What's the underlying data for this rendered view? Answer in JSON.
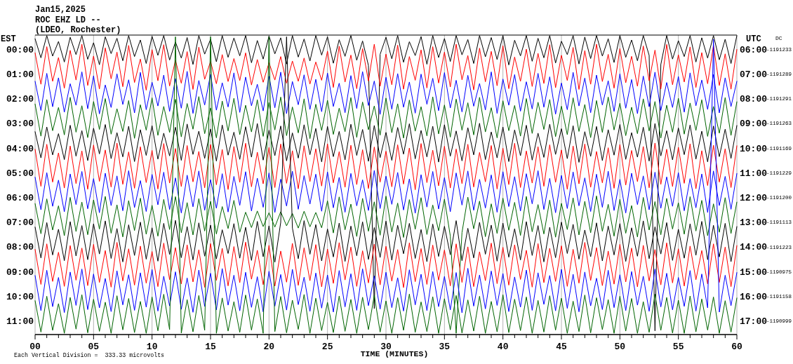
{
  "chart_data": {
    "type": "line",
    "title": "Jan15,2025",
    "subtitle": "ROC EHZ LD --",
    "annotations": [
      "(LDEO, Rochester)",
      "Each Vertical Division =  333.33 microvolts",
      "DC",
      "-1191233",
      "-1191289",
      "-1191291",
      "-1191263",
      "-1191169",
      "-1191229",
      "-1191200",
      "-1191113",
      "-1191223",
      "-1190975",
      "-1191158",
      "-1190999"
    ],
    "xlabel": "TIME (MINUTES)",
    "ylabel": "EST",
    "y2label": "UTC",
    "xlim": [
      0,
      60
    ],
    "xticks": [
      {
        "value": 0,
        "label": "00"
      },
      {
        "value": 1,
        "label": null
      },
      {
        "value": 2,
        "label": null
      },
      {
        "value": 3,
        "label": null
      },
      {
        "value": 4,
        "label": null
      },
      {
        "value": 5,
        "label": "05"
      },
      {
        "value": 6,
        "label": null
      },
      {
        "value": 7,
        "label": null
      },
      {
        "value": 8,
        "label": null
      },
      {
        "value": 9,
        "label": null
      },
      {
        "value": 10,
        "label": "10"
      },
      {
        "value": 11,
        "label": null
      },
      {
        "value": 12,
        "label": null
      },
      {
        "value": 13,
        "label": null
      },
      {
        "value": 14,
        "label": null
      },
      {
        "value": 15,
        "label": "15"
      },
      {
        "value": 16,
        "label": null
      },
      {
        "value": 17,
        "label": null
      },
      {
        "value": 18,
        "label": null
      },
      {
        "value": 19,
        "label": null
      },
      {
        "value": 20,
        "label": "20"
      },
      {
        "value": 21,
        "label": null
      },
      {
        "value": 22,
        "label": null
      },
      {
        "value": 23,
        "label": null
      },
      {
        "value": 24,
        "label": null
      },
      {
        "value": 25,
        "label": "25"
      },
      {
        "value": 26,
        "label": null
      },
      {
        "value": 27,
        "label": null
      },
      {
        "value": 28,
        "label": null
      },
      {
        "value": 29,
        "label": null
      },
      {
        "value": 30,
        "label": "30"
      },
      {
        "value": 31,
        "label": null
      },
      {
        "value": 32,
        "label": null
      },
      {
        "value": 33,
        "label": null
      },
      {
        "value": 34,
        "label": null
      },
      {
        "value": 35,
        "label": "35"
      },
      {
        "value": 36,
        "label": null
      },
      {
        "value": 37,
        "label": null
      },
      {
        "value": 38,
        "label": null
      },
      {
        "value": 39,
        "label": null
      },
      {
        "value": 40,
        "label": "40"
      },
      {
        "value": 41,
        "label": null
      },
      {
        "value": 42,
        "label": null
      },
      {
        "value": 43,
        "label": null
      },
      {
        "value": 44,
        "label": null
      },
      {
        "value": 45,
        "label": "45"
      },
      {
        "value": 46,
        "label": null
      },
      {
        "value": 47,
        "label": null
      },
      {
        "value": 48,
        "label": null
      },
      {
        "value": 49,
        "label": null
      },
      {
        "value": 50,
        "label": "50"
      },
      {
        "value": 51,
        "label": null
      },
      {
        "value": 52,
        "label": null
      },
      {
        "value": 53,
        "label": null
      },
      {
        "value": 54,
        "label": null
      },
      {
        "value": 55,
        "label": "55"
      },
      {
        "value": 56,
        "label": null
      },
      {
        "value": 57,
        "label": null
      },
      {
        "value": 58,
        "label": null
      },
      {
        "value": 59,
        "label": null
      },
      {
        "value": 60,
        "label": "60"
      }
    ],
    "ylim": [
      11.55,
      -0.57
    ],
    "yticks": [
      {
        "value": 0,
        "label": "00:00"
      },
      {
        "value": 1,
        "label": "01:00"
      },
      {
        "value": 2,
        "label": "02:00"
      },
      {
        "value": 3,
        "label": "03:00"
      },
      {
        "value": 4,
        "label": "04:00"
      },
      {
        "value": 5,
        "label": "05:00"
      },
      {
        "value": 6,
        "label": "06:00"
      },
      {
        "value": 7,
        "label": "07:00"
      },
      {
        "value": 8,
        "label": "08:00"
      },
      {
        "value": 9,
        "label": "09:00"
      },
      {
        "value": 10,
        "label": "10:00"
      },
      {
        "value": 11,
        "label": "11:00"
      }
    ],
    "y2lim": [
      17.55,
      5.43
    ],
    "y2ticks": [
      {
        "value": 6,
        "label": "06:00"
      },
      {
        "value": 7,
        "label": "07:00"
      },
      {
        "value": 8,
        "label": "08:00"
      },
      {
        "value": 9,
        "label": "09:00"
      },
      {
        "value": 10,
        "label": "10:00"
      },
      {
        "value": 11,
        "label": "11:00"
      },
      {
        "value": 12,
        "label": "12:00"
      },
      {
        "value": 13,
        "label": "13:00"
      },
      {
        "value": 14,
        "label": "14:00"
      },
      {
        "value": 15,
        "label": "15:00"
      },
      {
        "value": 16,
        "label": "16:00"
      },
      {
        "value": 17,
        "label": "17:00"
      }
    ],
    "grid": "x",
    "x": [
      0,
      0.5,
      1,
      1.5,
      2,
      2.5,
      3,
      3.5,
      4,
      4.5,
      5,
      5.5,
      6,
      6.5,
      7,
      7.5,
      8,
      8.5,
      9,
      9.5,
      10,
      10.5,
      11,
      11.5,
      12,
      12.5,
      13,
      13.5,
      14,
      14.5,
      15,
      15.5,
      16,
      16.5,
      17,
      17.5,
      18,
      18.5,
      19,
      19.5,
      20,
      20.5,
      21,
      21.5,
      22,
      22.5,
      23,
      23.5,
      24,
      24.5,
      25,
      25.5,
      26,
      26.5,
      27,
      27.5,
      28,
      28.5,
      29,
      29.5,
      30,
      30.5,
      31,
      31.5,
      32,
      32.5,
      33,
      33.5,
      34,
      34.5,
      35,
      35.5,
      36,
      36.5,
      37,
      37.5,
      38,
      38.5,
      39,
      39.5,
      40,
      40.5,
      41,
      41.5,
      42,
      42.5,
      43,
      43.5,
      44,
      44.5,
      45,
      45.5,
      46,
      46.5,
      47,
      47.5,
      48,
      48.5,
      49,
      49.5,
      50,
      50.5,
      51,
      51.5,
      52,
      52.5,
      53,
      53.5,
      54,
      54.5,
      55,
      55.5,
      56,
      56.5,
      57,
      57.5,
      58,
      58.5,
      59,
      59.5,
      60
    ],
    "series": [
      {
        "color": "#000000",
        "values": [
          -0.42,
          0.35,
          -0.55,
          0.28,
          -0.31,
          0.52,
          -0.48,
          0.22,
          -0.55,
          0.41,
          -0.26,
          0.63,
          -0.5,
          0.18,
          -0.44,
          0.47,
          -0.55,
          0.3,
          -0.37,
          0.58,
          -0.52,
          0.25,
          -0.55,
          0.44,
          -0.29,
          0.36,
          -0.47,
          0.62,
          -0.55,
          0.2,
          -0.4,
          0.51,
          -0.55,
          0.33,
          -0.45,
          0.27,
          -0.55,
          0.55,
          -0.35,
          0.4,
          -0.53,
          0.19,
          -0.46,
          0.6,
          -0.55,
          0.32,
          -0.41,
          0.48,
          -0.55,
          0.24,
          -0.5,
          0.57,
          -0.38,
          0.29,
          -0.55,
          0.45,
          -0.33,
          0.66,
          10.5,
          0.21,
          -0.48,
          0.39,
          -0.55,
          0.53,
          -0.3,
          0.26,
          -0.51,
          0.61,
          -0.55,
          0.34,
          -0.43,
          0.5,
          -0.55,
          0.23,
          -0.39,
          0.58,
          -0.55,
          0.31,
          -0.47,
          0.42,
          -0.55,
          0.64,
          -0.36,
          0.27,
          -0.55,
          0.49,
          -0.44,
          0.35,
          -0.55,
          0.56,
          -0.32,
          0.22,
          -0.55,
          0.6,
          -0.49,
          0.38,
          -0.55,
          0.28,
          -0.42,
          0.54,
          -0.55,
          0.33,
          -0.37,
          0.47,
          -0.55,
          0.25,
          11.4,
          0.62,
          -0.55,
          0.4,
          -0.34,
          0.3,
          -0.55,
          0.52,
          -0.46,
          0.36,
          -0.55,
          0.43,
          -0.4,
          0.58,
          -0.55
        ]
      },
      {
        "color": "#ff0000",
        "values": [
          0.15,
          1.42,
          -0.1,
          1.3,
          0.34,
          1.58,
          0.05,
          1.25,
          -0.2,
          1.47,
          0.28,
          1.61,
          -0.05,
          1.2,
          0.12,
          1.52,
          -0.15,
          1.35,
          0.4,
          1.66,
          0.02,
          1.28,
          -0.18,
          1.49,
          0.45,
          1.38,
          0.1,
          1.63,
          -0.08,
          1.22,
          0.5,
          1.4,
          0.22,
          1.31,
          0.38,
          1.27,
          0.15,
          1.45,
          0.42,
          1.34,
          0.55,
          1.25,
          0.3,
          1.38,
          0.48,
          1.3,
          0.36,
          1.41,
          0.52,
          1.26,
          0.08,
          1.55,
          -0.12,
          1.33,
          0.24,
          1.6,
          -0.02,
          1.29,
          -0.2,
          1.5,
          0.2,
          1.44,
          -0.16,
          1.62,
          0.3,
          1.26,
          0.03,
          1.57,
          -0.1,
          1.37,
          0.12,
          1.53,
          -0.2,
          1.24,
          0.26,
          1.65,
          -0.04,
          1.32,
          0.09,
          1.48,
          -0.14,
          1.6,
          0.32,
          1.3,
          0.0,
          1.51,
          0.17,
          1.39,
          -0.18,
          1.56,
          0.25,
          1.27,
          -0.07,
          1.63,
          0.06,
          1.42,
          -0.2,
          1.31,
          0.21,
          1.58,
          -0.02,
          1.36,
          0.29,
          1.5,
          -0.13,
          1.28,
          0.04,
          1.61,
          -0.19,
          1.44,
          0.23,
          1.33,
          -0.09,
          1.55,
          0.14,
          1.4,
          -0.15,
          1.47,
          0.19,
          1.62,
          0.01
        ]
      },
      {
        "color": "#0000ff",
        "values": [
          1.3,
          2.48,
          0.98,
          2.33,
          1.16,
          2.55,
          1.4,
          2.27,
          0.92,
          2.41,
          1.08,
          2.62,
          1.45,
          2.36,
          1.0,
          2.24,
          1.24,
          2.58,
          0.94,
          2.45,
          1.34,
          2.3,
          1.05,
          2.52,
          1.19,
          2.39,
          0.9,
          2.6,
          1.27,
          2.26,
          1.02,
          2.47,
          1.36,
          2.34,
          0.96,
          2.56,
          1.13,
          2.29,
          1.42,
          2.5,
          1.1,
          2.37,
          0.93,
          2.61,
          1.31,
          2.25,
          1.04,
          2.44,
          1.22,
          2.53,
          0.97,
          2.32,
          1.38,
          2.57,
          1.07,
          2.4,
          0.91,
          2.28,
          1.29,
          2.64,
          1.14,
          2.43,
          0.99,
          2.35,
          1.33,
          2.59,
          1.01,
          2.23,
          1.18,
          2.49,
          0.95,
          2.38,
          1.26,
          2.54,
          1.06,
          2.31,
          1.39,
          2.46,
          0.92,
          2.6,
          1.21,
          2.27,
          1.03,
          2.51,
          1.32,
          2.42,
          0.98,
          2.35,
          1.12,
          2.63,
          1.37,
          2.45,
          0.94,
          2.3,
          1.17,
          2.57,
          1.05,
          2.26,
          1.28,
          2.52,
          1.0,
          2.39,
          1.23,
          2.61,
          1.09,
          2.33,
          0.93,
          2.48,
          1.35,
          2.36,
          1.11,
          2.55,
          0.96,
          2.29,
          1.25,
          2.44,
          1.03,
          2.58,
          1.16,
          2.32,
          1.3
        ]
      },
      {
        "color": "#006400",
        "values": [
          2.22,
          3.52,
          2.04,
          3.3,
          2.36,
          3.47,
          1.95,
          3.36,
          2.29,
          3.58,
          2.12,
          3.25,
          2.0,
          3.44,
          2.41,
          3.33,
          2.08,
          3.61,
          2.25,
          3.28,
          1.97,
          3.49,
          2.32,
          3.37,
          2.03,
          3.55,
          2.2,
          3.24,
          1.92,
          3.42,
          2.38,
          3.59,
          2.1,
          3.31,
          1.99,
          3.46,
          2.27,
          3.35,
          2.05,
          3.53,
          2.16,
          3.27,
          1.94,
          3.5,
          2.34,
          3.39,
          2.01,
          3.62,
          2.23,
          3.29,
          2.07,
          3.45,
          2.39,
          3.34,
          1.96,
          3.57,
          2.14,
          3.26,
          2.3,
          3.48,
          1.98,
          3.38,
          2.21,
          3.6,
          2.06,
          3.32,
          2.33,
          3.51,
          1.93,
          3.43,
          2.26,
          3.56,
          2.02,
          3.28,
          2.17,
          3.47,
          1.95,
          3.35,
          2.37,
          3.59,
          2.09,
          3.3,
          2.28,
          3.52,
          2.0,
          3.41,
          2.15,
          3.25,
          2.04,
          3.54,
          2.31,
          3.46,
          1.97,
          3.33,
          2.24,
          3.58,
          2.08,
          3.37,
          1.94,
          3.27,
          2.19,
          3.5,
          2.35,
          3.42,
          2.01,
          3.31,
          2.12,
          3.6,
          2.27,
          3.36,
          1.99,
          3.44,
          2.18,
          3.29,
          2.05,
          3.53,
          2.32,
          3.4,
          1.96,
          3.49,
          2.13
        ]
      },
      {
        "color": "#000000",
        "values": [
          3.34,
          4.4,
          3.15,
          4.28,
          3.42,
          4.47,
          3.08,
          4.33,
          3.3,
          4.51,
          3.2,
          4.24,
          3.05,
          4.43,
          3.38,
          4.36,
          3.12,
          4.55,
          3.26,
          4.3,
          3.1,
          4.45,
          3.4,
          4.32,
          3.16,
          4.5,
          3.03,
          4.26,
          3.32,
          4.42,
          3.23,
          4.53,
          3.07,
          4.29,
          3.36,
          4.46,
          3.14,
          4.37,
          3.01,
          4.49,
          3.28,
          4.31,
          3.11,
          4.52,
          3.39,
          4.41,
          3.06,
          4.27,
          3.21,
          4.56,
          3.13,
          4.35,
          3.33,
          4.48,
          3.04,
          4.3,
          3.25,
          4.54,
          3.09,
          4.39,
          3.37,
          4.5,
          3.17,
          4.25,
          3.02,
          4.44,
          3.29,
          4.36,
          3.12,
          4.57,
          3.06,
          4.33,
          3.31,
          4.52,
          3.18,
          4.28,
          3.0,
          4.47,
          3.35,
          4.4,
          3.15,
          4.55,
          3.27,
          4.31,
          3.08,
          4.49,
          3.4,
          4.38,
          3.04,
          4.26,
          3.22,
          4.43,
          3.1,
          4.58,
          3.34,
          4.34,
          3.13,
          4.51,
          3.26,
          4.29,
          3.05,
          4.46,
          3.38,
          4.37,
          3.16,
          4.53,
          3.01,
          4.32,
          3.3,
          4.48,
          3.19,
          4.27,
          3.07,
          4.45,
          3.32,
          4.56,
          3.11,
          4.35,
          3.24,
          4.42,
          3.09
        ]
      },
      {
        "color": "#ff0000",
        "values": [
          4.05,
          5.55,
          3.85,
          5.38,
          4.2,
          5.62,
          3.92,
          5.44,
          4.12,
          5.67,
          3.88,
          5.35,
          4.08,
          5.58,
          3.8,
          5.47,
          4.16,
          5.63,
          3.95,
          5.4,
          4.1,
          5.66,
          3.82,
          5.42,
          4.02,
          5.56,
          3.9,
          5.37,
          4.14,
          5.61,
          3.86,
          5.49,
          4.06,
          5.68,
          3.94,
          5.39,
          3.81,
          5.57,
          4.17,
          5.45,
          3.98,
          5.6,
          3.84,
          5.43,
          4.11,
          5.65,
          3.91,
          5.36,
          4.03,
          5.54,
          3.83,
          5.41,
          4.15,
          5.59,
          3.89,
          5.48,
          4.07,
          5.64,
          3.96,
          5.38,
          4.13,
          5.57,
          3.87,
          5.46,
          4.0,
          5.69,
          3.82,
          5.4,
          4.09,
          5.53,
          3.93,
          5.62,
          4.04,
          5.44,
          3.85,
          5.58,
          4.18,
          5.37,
          3.9,
          5.66,
          4.01,
          5.48,
          3.81,
          5.6,
          4.12,
          5.42,
          3.95,
          5.55,
          3.87,
          5.39,
          4.08,
          5.67,
          3.92,
          5.45,
          3.84,
          5.59,
          4.14,
          5.41,
          3.99,
          5.63,
          3.86,
          5.5,
          4.1,
          5.36,
          3.94,
          5.61,
          3.8,
          5.47,
          4.05,
          5.56,
          3.97,
          5.43,
          3.83,
          5.65,
          4.11,
          5.52,
          3.89,
          5.38,
          4.03,
          5.6,
          3.91
        ]
      },
      {
        "color": "#0000ff",
        "values": [
          5.18,
          6.5,
          5.0,
          6.36,
          5.3,
          6.58,
          5.05,
          6.29,
          4.95,
          6.46,
          5.24,
          6.62,
          5.02,
          6.33,
          5.13,
          6.54,
          4.92,
          6.41,
          5.32,
          6.57,
          5.07,
          6.3,
          4.98,
          6.49,
          5.21,
          6.63,
          5.1,
          6.38,
          4.93,
          6.52,
          5.28,
          6.44,
          5.04,
          6.59,
          5.15,
          6.32,
          4.96,
          6.55,
          5.22,
          6.4,
          5.01,
          6.61,
          5.26,
          6.35,
          4.94,
          6.48,
          5.12,
          6.27,
          5.06,
          6.56,
          4.97,
          6.42,
          5.19,
          6.6,
          5.03,
          6.34,
          5.29,
          6.53,
          4.91,
          6.45,
          5.14,
          6.28,
          4.99,
          6.51,
          5.25,
          6.64,
          5.08,
          6.39,
          4.95,
          6.47,
          5.2,
          6.58,
          5.01,
          6.31,
          4.93,
          6.52,
          5.27,
          6.43,
          5.09,
          6.6,
          4.96,
          6.37,
          5.16,
          6.55,
          5.04,
          6.26,
          4.92,
          6.49,
          5.23,
          6.62,
          5.11,
          6.45,
          4.97,
          6.34,
          5.21,
          6.57,
          5.06,
          6.4,
          4.94,
          6.53,
          5.27,
          6.63,
          5.02,
          6.29,
          5.13,
          6.5,
          4.98,
          6.44,
          5.17,
          6.36,
          5.0,
          6.54,
          5.24,
          6.42,
          5.05,
          6.61,
          4.93,
          6.33,
          5.15,
          6.48,
          5.03
        ]
      },
      {
        "color": "#006400",
        "values": [
          6.25,
          7.47,
          6.06,
          7.32,
          6.34,
          7.55,
          6.0,
          7.38,
          6.19,
          7.51,
          6.1,
          7.28,
          5.96,
          7.45,
          6.3,
          7.6,
          6.13,
          7.34,
          6.03,
          7.49,
          6.32,
          7.57,
          6.08,
          7.3,
          5.97,
          7.43,
          6.21,
          7.52,
          6.05,
          7.36,
          6.16,
          7.48,
          6.37,
          7.26,
          6.12,
          7.41,
          6.6,
          7.22,
          6.55,
          7.18,
          6.62,
          7.2,
          6.58,
          7.15,
          6.65,
          7.24,
          6.56,
          7.19,
          6.61,
          7.23,
          6.14,
          7.44,
          5.98,
          7.31,
          6.27,
          7.58,
          6.04,
          7.37,
          6.18,
          7.53,
          5.95,
          7.4,
          6.23,
          7.62,
          6.09,
          7.29,
          6.01,
          7.5,
          6.31,
          7.35,
          6.07,
          7.56,
          11.5,
          7.42,
          5.99,
          7.27,
          6.15,
          7.59,
          6.26,
          7.46,
          6.03,
          7.33,
          6.2,
          7.54,
          5.96,
          7.39,
          6.29,
          7.48,
          6.11,
          7.61,
          6.24,
          7.3,
          6.02,
          7.52,
          6.16,
          7.43,
          5.94,
          7.37,
          6.28,
          7.57,
          6.08,
          7.45,
          6.33,
          7.6,
          6.0,
          7.32,
          6.17,
          7.51,
          6.04,
          7.28,
          6.22,
          7.49,
          5.97,
          7.36,
          6.12,
          7.55,
          6.26,
          7.41,
          6.01,
          7.46,
          6.19
        ]
      },
      {
        "color": "#000000",
        "values": [
          7.2,
          8.45,
          7.02,
          8.33,
          7.29,
          8.56,
          6.98,
          8.37,
          7.14,
          8.52,
          7.07,
          8.29,
          6.95,
          8.47,
          7.26,
          8.61,
          7.11,
          8.35,
          7.0,
          8.5,
          7.23,
          8.58,
          7.05,
          8.31,
          6.93,
          8.44,
          7.18,
          8.53,
          7.03,
          8.38,
          7.12,
          8.49,
          7.31,
          8.27,
          7.06,
          8.46,
          7.21,
          8.55,
          6.97,
          8.4,
          7.15,
          8.62,
          7.01,
          -0.5,
          7.24,
          8.48,
          6.94,
          8.3,
          7.1,
          8.57,
          7.28,
          8.41,
          7.04,
          8.59,
          7.16,
          8.36,
          6.99,
          8.51,
          7.22,
          8.43,
          6.96,
          8.54,
          7.13,
          8.28,
          7.05,
          8.47,
          7.3,
          8.6,
          7.08,
          8.39,
          7.17,
          8.32,
          6.94,
          8.56,
          7.25,
          8.45,
          7.01,
          8.3,
          7.12,
          8.58,
          7.04,
          8.42,
          7.27,
          8.53,
          6.98,
          8.35,
          7.14,
          8.61,
          7.21,
          8.44,
          7.0,
          8.27,
          7.09,
          8.5,
          7.32,
          8.4,
          7.03,
          8.57,
          7.16,
          8.33,
          7.06,
          8.59,
          7.23,
          8.38,
          6.95,
          8.48,
          7.19,
          8.29,
          7.02,
          8.55,
          7.29,
          8.46,
          7.07,
          8.34,
          6.97,
          8.52,
          7.13,
          8.41,
          7.05,
          8.6,
          7.18
        ]
      },
      {
        "color": "#ff0000",
        "values": [
          8.1,
          9.52,
          7.88,
          9.4,
          8.22,
          9.6,
          7.95,
          9.35,
          8.05,
          9.57,
          7.9,
          9.44,
          8.15,
          9.63,
          7.82,
          9.38,
          8.08,
          9.55,
          7.97,
          9.47,
          8.19,
          9.61,
          7.85,
          9.33,
          8.03,
          9.5,
          7.92,
          9.42,
          8.12,
          9.64,
          7.87,
          9.36,
          8.06,
          9.58,
          7.99,
          9.45,
          7.81,
          9.31,
          8.14,
          9.53,
          7.94,
          9.59,
          8.17,
          9.43,
          7.86,
          9.56,
          8.04,
          9.37,
          7.91,
          9.62,
          8.09,
          9.48,
          7.83,
          9.34,
          8.01,
          9.6,
          8.16,
          9.46,
          7.89,
          9.54,
          7.98,
          9.39,
          8.11,
          9.65,
          7.84,
          9.41,
          8.07,
          9.52,
          7.93,
          9.35,
          8.13,
          9.58,
          7.88,
          9.44,
          8.0,
          9.61,
          8.2,
          9.37,
          7.85,
          9.49,
          8.02,
          9.55,
          7.92,
          9.32,
          8.14,
          9.63,
          7.87,
          9.45,
          8.06,
          9.4,
          7.96,
          9.6,
          8.1,
          9.47,
          7.82,
          9.36,
          8.03,
          9.57,
          8.17,
          9.51,
          7.9,
          9.42,
          8.05,
          9.62,
          7.94,
          9.38,
          8.11,
          9.54,
          7.84,
          9.46,
          8.08,
          9.59,
          7.97,
          9.33,
          8.15,
          9.5,
          7.88,
          9.44,
          8.01,
          9.61,
          7.95
        ]
      },
      {
        "color": "#0000ff",
        "values": [
          9.16,
          10.58,
          8.95,
          10.42,
          9.24,
          10.66,
          9.02,
          10.37,
          8.9,
          10.54,
          9.1,
          10.47,
          9.28,
          10.62,
          8.97,
          10.35,
          9.13,
          10.57,
          9.05,
          10.44,
          8.92,
          10.6,
          9.19,
          10.39,
          9.01,
          10.53,
          9.26,
          10.65,
          8.94,
          10.41,
          9.07,
          10.55,
          8.88,
          10.36,
          9.15,
          10.59,
          9.03,
          10.45,
          9.21,
          10.63,
          8.99,
          10.4,
          9.12,
          10.56,
          8.91,
          10.34,
          9.23,
          10.61,
          9.06,
          10.48,
          9.14,
          10.64,
          8.96,
          10.43,
          9.09,
          10.57,
          8.89,
          10.38,
          9.18,
          10.52,
          9.03,
          10.46,
          9.25,
          10.6,
          8.93,
          10.35,
          9.11,
          10.58,
          9.0,
          10.42,
          9.2,
          10.55,
          9.04,
          10.67,
          8.87,
          10.4,
          9.14,
          10.51,
          8.98,
          10.37,
          9.08,
          10.62,
          9.22,
          10.44,
          8.94,
          10.57,
          9.05,
          10.33,
          9.16,
          10.59,
          8.91,
          10.49,
          9.11,
          10.63,
          9.02,
          10.39,
          9.27,
          10.54,
          8.95,
          10.46,
          9.13,
          10.58,
          9.0,
          10.36,
          9.19,
          10.61,
          8.9,
          10.43,
          9.07,
          10.55,
          9.24,
          10.41,
          8.96,
          10.6,
          9.1,
          10.47,
          -0.4,
          10.64,
          9.15,
          10.38,
          9.04
        ]
      },
      {
        "color": "#006400",
        "values": [
          10.18,
          11.45,
          10.0,
          11.38,
          10.3,
          11.5,
          10.05,
          11.33,
          9.94,
          11.48,
          10.12,
          11.42,
          10.24,
          11.5,
          9.98,
          11.36,
          10.09,
          11.47,
          10.21,
          11.5,
          10.03,
          11.4,
          9.92,
          11.35,
          -0.5,
          11.49,
          10.14,
          11.44,
          9.97,
          11.38,
          -0.5,
          11.5,
          10.07,
          11.41,
          10.22,
          11.46,
          9.95,
          11.37,
          10.11,
          11.5,
          -0.5,
          11.43,
          10.01,
          11.48,
          10.16,
          11.34,
          9.93,
          11.5,
          10.08,
          11.39,
          10.25,
          11.47,
          9.99,
          11.42,
          10.13,
          11.5,
          10.04,
          11.35,
          9.96,
          11.45,
          10.19,
          11.5,
          10.06,
          11.38,
          9.91,
          11.46,
          10.23,
          11.43,
          10.02,
          11.5,
          10.1,
          11.36,
          9.97,
          11.49,
          10.15,
          11.41,
          10.0,
          11.5,
          10.21,
          11.44,
          9.94,
          11.47,
          10.12,
          11.39,
          10.03,
          11.5,
          10.17,
          11.45,
          9.98,
          11.37,
          10.08,
          11.5,
          10.2,
          11.43,
          9.95,
          11.48,
          10.06,
          11.35,
          10.14,
          11.5,
          10.0,
          11.41,
          10.09,
          11.5,
          10.22,
          11.46,
          9.92,
          11.38,
          10.05,
          11.49,
          10.16,
          11.5,
          9.99,
          11.44,
          10.11,
          11.37,
          10.03,
          11.5,
          10.18,
          11.45,
          10.07
        ]
      }
    ]
  }
}
